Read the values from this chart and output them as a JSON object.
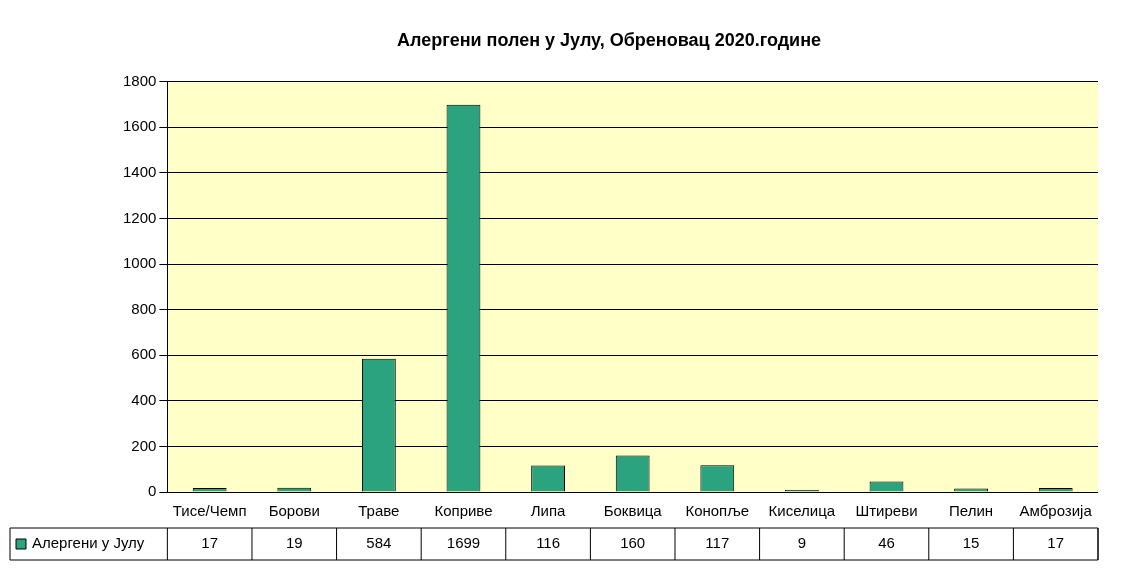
{
  "chart_data": {
    "type": "bar",
    "title": "Алергени полен у Јулу, Обреновац 2020.године",
    "categories": [
      "Тисе/Чемп",
      "Борови",
      "Траве",
      "Коприве",
      "Липа",
      "Боквица",
      "Конопље",
      "Киселица",
      "Штиреви",
      "Пелин",
      "Амброзија"
    ],
    "series": [
      {
        "name": "Алергени у Јулу",
        "color": "#2ba37f",
        "values": [
          17,
          19,
          584,
          1699,
          116,
          160,
          117,
          9,
          46,
          15,
          17
        ]
      }
    ],
    "ylim": [
      0,
      1800
    ],
    "yticks": [
      0,
      200,
      400,
      600,
      800,
      1000,
      1200,
      1400,
      1600,
      1800
    ],
    "grid": "y",
    "legend": "bottom",
    "data_labels": true
  }
}
